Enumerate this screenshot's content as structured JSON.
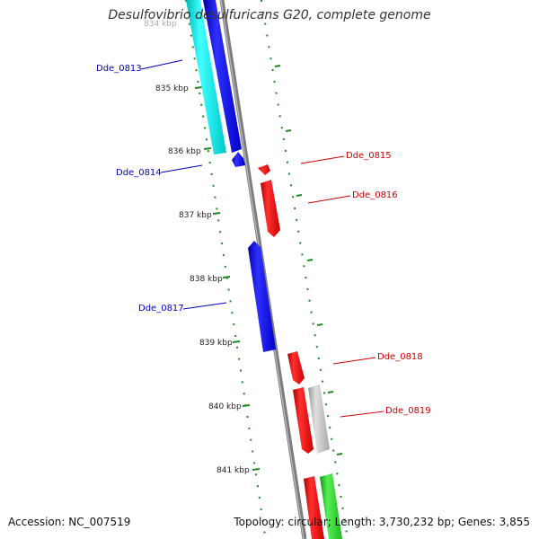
{
  "title": "Desulfovibrio desulfuricans G20, complete genome",
  "footer": {
    "accession": "Accession: NC_007519",
    "summary": "Topology: circular; Length: 3,730,232 bp; Genes: 3,855"
  },
  "colors": {
    "background": "#ffffff",
    "backbone": "#8a8a8a",
    "tick_marks": "#1e8a1e",
    "forward_label": "#0000bb",
    "reverse_label": "#cc0000",
    "gene_blue": "#0000ee",
    "gene_cyan": "#00e5e5",
    "gene_red": "#ee0000",
    "gene_gray": "#bbbbbb",
    "gene_green": "#22cc22"
  },
  "ticks": [
    "834 kbp",
    "835 kbp",
    "836 kbp",
    "837 kbp",
    "838 kbp",
    "839 kbp",
    "840 kbp",
    "841 kbp"
  ],
  "gene_labels": [
    {
      "text": "Dde_0813",
      "strand": "forward"
    },
    {
      "text": "Dde_0814",
      "strand": "forward"
    },
    {
      "text": "Dde_0815",
      "strand": "reverse"
    },
    {
      "text": "Dde_0816",
      "strand": "reverse"
    },
    {
      "text": "Dde_0817",
      "strand": "forward"
    },
    {
      "text": "Dde_0818",
      "strand": "reverse"
    },
    {
      "text": "Dde_0819",
      "strand": "reverse"
    }
  ]
}
